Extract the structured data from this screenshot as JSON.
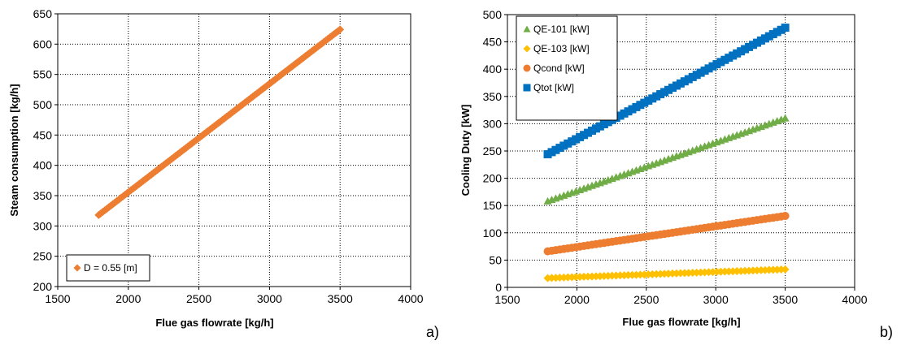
{
  "chart_data": [
    {
      "type": "scatter",
      "panel_label": "a)",
      "xlabel": "Flue gas flowrate [kg/h]",
      "ylabel": "Steam consumption [kg/h]",
      "xlim": [
        1500,
        4000
      ],
      "ylim": [
        200,
        650
      ],
      "xticks": [
        1500,
        2000,
        2500,
        3000,
        3500,
        4000
      ],
      "yticks": [
        200,
        250,
        300,
        350,
        400,
        450,
        500,
        550,
        600,
        650
      ],
      "grid": true,
      "legend_position": "bottom-left",
      "x_range": [
        1790,
        3500
      ],
      "n_points": 120,
      "series": [
        {
          "name": "D = 0.55 [m]",
          "marker": "diamond",
          "color": "#ED7D31",
          "y_start": 318,
          "y_end": 624
        }
      ]
    },
    {
      "type": "scatter",
      "panel_label": "b)",
      "xlabel": "Flue gas flowrate [kg/h]",
      "ylabel": "Cooling Duty [kW]",
      "xlim": [
        1500,
        4000
      ],
      "ylim": [
        0,
        500
      ],
      "xticks": [
        1500,
        2000,
        2500,
        3000,
        3500,
        4000
      ],
      "yticks": [
        0,
        50,
        100,
        150,
        200,
        250,
        300,
        350,
        400,
        450,
        500
      ],
      "grid": true,
      "legend_position": "top-left",
      "x_range": [
        1790,
        3500
      ],
      "n_points": 60,
      "series": [
        {
          "name": "QE-101 [kW]",
          "marker": "triangle",
          "color": "#70AD47",
          "y_start": 158,
          "y_end": 310
        },
        {
          "name": "QE-103 [kW]",
          "marker": "diamond",
          "color": "#FFC000",
          "y_start": 17,
          "y_end": 33
        },
        {
          "name": "Qcond [kW]",
          "marker": "circle",
          "color": "#ED7D31",
          "y_start": 66,
          "y_end": 131
        },
        {
          "name": "Qtot [kW]",
          "marker": "square",
          "color": "#0070C0",
          "y_start": 244,
          "y_end": 476
        }
      ]
    }
  ]
}
